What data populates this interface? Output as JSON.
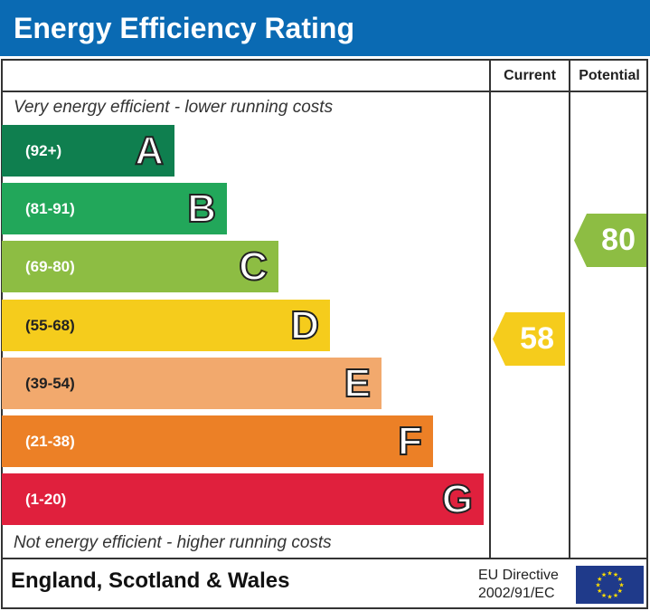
{
  "title": "Energy Efficiency Rating",
  "columns": {
    "current": "Current",
    "potential": "Potential"
  },
  "top_note": "Very energy efficient - lower running costs",
  "bottom_note": "Not energy efficient - higher running costs",
  "chart_data": {
    "type": "bar",
    "categories": [
      "A",
      "B",
      "C",
      "D",
      "E",
      "F",
      "G"
    ],
    "ranges": [
      "(92+)",
      "(81-91)",
      "(69-80)",
      "(55-68)",
      "(39-54)",
      "(21-38)",
      "(1-20)"
    ],
    "colors": [
      "#0f7f4f",
      "#22a75a",
      "#8dbd43",
      "#f5cc1c",
      "#f2a96d",
      "#ec8026",
      "#e0203d"
    ],
    "current": {
      "value": "58",
      "band": "D",
      "color": "#f5cc1c"
    },
    "potential": {
      "value": "80",
      "band": "C",
      "color": "#8dbd43"
    }
  },
  "footer": {
    "region": "England, Scotland & Wales",
    "directive_line1": "EU Directive",
    "directive_line2": "2002/91/EC"
  }
}
